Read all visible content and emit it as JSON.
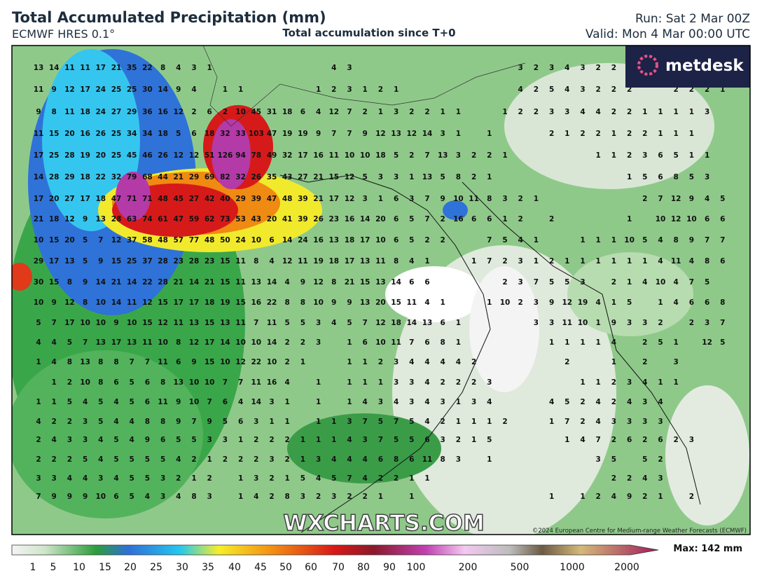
{
  "header": {
    "title": "Total Accumulated Precipitation (mm)",
    "model": "ECMWF HRES 0.1°",
    "subtitle": "Total accumulation since T+0",
    "run": "Run: Sat 2 Mar 00Z",
    "valid": "Valid: Mon 4 Mar 00:00 UTC"
  },
  "logo": "metdesk",
  "watermark": "WXCHARTS.COM",
  "credit": "©2024 European Centre for Medium-range Weather Forecasts (ECMWF)",
  "legend": {
    "max": "Max: 142 mm",
    "labels": [
      1,
      5,
      10,
      15,
      20,
      25,
      30,
      35,
      40,
      45,
      50,
      60,
      70,
      80,
      90,
      100,
      200,
      500,
      1000,
      2000
    ]
  },
  "grid_values": [
    [
      13,
      14,
      11,
      11,
      17,
      21,
      35,
      22,
      8,
      4,
      3,
      1,
      null,
      null,
      null,
      null,
      null,
      null,
      null,
      4,
      3,
      null,
      null,
      null,
      null,
      null,
      null,
      null,
      null,
      null,
      null,
      3,
      2,
      3,
      4,
      3,
      2,
      2
    ],
    [
      11,
      9,
      12,
      17,
      24,
      25,
      25,
      30,
      14,
      9,
      4,
      null,
      1,
      1,
      null,
      null,
      null,
      null,
      1,
      2,
      3,
      1,
      2,
      1,
      null,
      null,
      null,
      null,
      null,
      null,
      null,
      4,
      2,
      5,
      4,
      3,
      2,
      2,
      2,
      null,
      null,
      2,
      2,
      2,
      1
    ],
    [
      9,
      8,
      11,
      18,
      24,
      27,
      29,
      36,
      16,
      12,
      2,
      6,
      2,
      10,
      45,
      31,
      18,
      6,
      4,
      12,
      7,
      2,
      1,
      3,
      2,
      2,
      1,
      1,
      null,
      null,
      1,
      2,
      2,
      3,
      3,
      4,
      4,
      2,
      2,
      1,
      1,
      1,
      1,
      3
    ],
    [
      11,
      15,
      20,
      16,
      26,
      25,
      34,
      34,
      18,
      5,
      6,
      18,
      32,
      33,
      103,
      47,
      19,
      19,
      9,
      7,
      7,
      9,
      12,
      13,
      12,
      14,
      3,
      1,
      null,
      1,
      null,
      null,
      null,
      2,
      1,
      2,
      2,
      1,
      2,
      2,
      1,
      1,
      1
    ],
    [
      17,
      25,
      28,
      19,
      20,
      25,
      45,
      46,
      26,
      12,
      12,
      51,
      126,
      94,
      78,
      49,
      32,
      17,
      16,
      11,
      10,
      10,
      18,
      5,
      2,
      7,
      13,
      3,
      2,
      2,
      1,
      null,
      null,
      null,
      null,
      null,
      1,
      1,
      2,
      3,
      6,
      5,
      1,
      1
    ],
    [
      14,
      28,
      29,
      18,
      22,
      32,
      79,
      68,
      44,
      21,
      29,
      69,
      82,
      32,
      26,
      35,
      43,
      27,
      21,
      15,
      12,
      5,
      3,
      3,
      1,
      13,
      5,
      8,
      2,
      1,
      null,
      null,
      null,
      null,
      null,
      null,
      null,
      null,
      1,
      5,
      6,
      8,
      5,
      3
    ],
    [
      17,
      20,
      27,
      17,
      18,
      47,
      71,
      71,
      48,
      45,
      27,
      42,
      40,
      29,
      39,
      47,
      48,
      39,
      21,
      17,
      12,
      3,
      1,
      6,
      3,
      7,
      9,
      10,
      11,
      8,
      3,
      2,
      1,
      null,
      null,
      null,
      null,
      null,
      null,
      2,
      7,
      12,
      9,
      4,
      5
    ],
    [
      21,
      18,
      12,
      9,
      13,
      28,
      63,
      74,
      61,
      47,
      59,
      62,
      73,
      53,
      43,
      20,
      41,
      39,
      26,
      23,
      16,
      14,
      20,
      6,
      5,
      7,
      2,
      16,
      6,
      6,
      1,
      2,
      null,
      2,
      null,
      null,
      null,
      null,
      1,
      null,
      10,
      12,
      10,
      6,
      6
    ],
    [
      10,
      15,
      20,
      5,
      7,
      12,
      37,
      58,
      48,
      57,
      77,
      48,
      50,
      24,
      10,
      6,
      14,
      24,
      16,
      13,
      18,
      17,
      10,
      6,
      5,
      2,
      2,
      null,
      null,
      7,
      5,
      4,
      1,
      null,
      null,
      1,
      1,
      1,
      10,
      5,
      4,
      8,
      9,
      7,
      7
    ],
    [
      29,
      17,
      13,
      5,
      9,
      15,
      25,
      37,
      28,
      23,
      28,
      23,
      15,
      11,
      8,
      4,
      12,
      11,
      19,
      18,
      17,
      13,
      11,
      8,
      4,
      1,
      null,
      null,
      1,
      7,
      2,
      3,
      1,
      2,
      1,
      1,
      1,
      1,
      1,
      1,
      4,
      11,
      4,
      8,
      6
    ],
    [
      30,
      15,
      8,
      9,
      14,
      21,
      14,
      22,
      28,
      21,
      14,
      21,
      15,
      11,
      13,
      14,
      4,
      9,
      12,
      8,
      21,
      15,
      13,
      14,
      6,
      6,
      null,
      null,
      null,
      null,
      2,
      3,
      7,
      5,
      5,
      3,
      null,
      2,
      1,
      4,
      10,
      4,
      7,
      5
    ],
    [
      10,
      9,
      12,
      8,
      10,
      14,
      11,
      12,
      15,
      17,
      17,
      18,
      19,
      15,
      16,
      22,
      8,
      8,
      10,
      9,
      9,
      13,
      20,
      15,
      11,
      4,
      1,
      null,
      null,
      1,
      10,
      2,
      3,
      9,
      12,
      19,
      4,
      1,
      5,
      null,
      1,
      4,
      6,
      6,
      8
    ],
    [
      5,
      7,
      17,
      10,
      10,
      9,
      10,
      15,
      12,
      11,
      13,
      15,
      13,
      11,
      7,
      11,
      5,
      5,
      3,
      4,
      5,
      7,
      12,
      18,
      14,
      13,
      6,
      1,
      null,
      null,
      null,
      null,
      3,
      3,
      11,
      10,
      1,
      9,
      3,
      3,
      2,
      null,
      2,
      3,
      7
    ],
    [
      4,
      4,
      5,
      7,
      13,
      17,
      13,
      11,
      10,
      8,
      12,
      17,
      14,
      10,
      10,
      14,
      2,
      2,
      3,
      null,
      1,
      6,
      10,
      11,
      7,
      6,
      8,
      1,
      null,
      null,
      null,
      null,
      null,
      1,
      1,
      1,
      1,
      4,
      null,
      2,
      5,
      1,
      null,
      12,
      5
    ],
    [
      1,
      4,
      8,
      13,
      8,
      8,
      7,
      7,
      11,
      6,
      9,
      15,
      10,
      12,
      22,
      10,
      2,
      1,
      null,
      null,
      1,
      1,
      2,
      3,
      4,
      4,
      4,
      4,
      2,
      null,
      null,
      null,
      null,
      null,
      2,
      null,
      null,
      1,
      null,
      2,
      null,
      3
    ],
    [
      null,
      1,
      2,
      10,
      8,
      6,
      5,
      6,
      8,
      13,
      10,
      10,
      7,
      7,
      11,
      16,
      4,
      null,
      1,
      null,
      1,
      1,
      1,
      3,
      3,
      4,
      2,
      2,
      2,
      3,
      null,
      null,
      null,
      null,
      null,
      1,
      1,
      2,
      3,
      4,
      1,
      1
    ],
    [
      1,
      1,
      5,
      4,
      5,
      4,
      5,
      6,
      11,
      9,
      10,
      7,
      6,
      4,
      14,
      3,
      1,
      null,
      1,
      null,
      1,
      4,
      3,
      4,
      3,
      4,
      3,
      1,
      3,
      4,
      null,
      null,
      null,
      4,
      5,
      2,
      4,
      2,
      4,
      3,
      4
    ],
    [
      4,
      2,
      2,
      3,
      5,
      4,
      4,
      8,
      8,
      9,
      7,
      9,
      5,
      6,
      3,
      1,
      1,
      null,
      1,
      1,
      3,
      7,
      5,
      7,
      5,
      4,
      2,
      1,
      1,
      1,
      2,
      null,
      null,
      1,
      7,
      2,
      4,
      3,
      3,
      3,
      3
    ],
    [
      2,
      4,
      3,
      3,
      4,
      5,
      4,
      9,
      6,
      5,
      5,
      3,
      3,
      1,
      2,
      2,
      2,
      1,
      1,
      1,
      4,
      3,
      7,
      5,
      5,
      6,
      3,
      2,
      1,
      5,
      null,
      null,
      null,
      null,
      1,
      4,
      7,
      2,
      6,
      2,
      6,
      2,
      3
    ],
    [
      2,
      2,
      2,
      5,
      4,
      5,
      5,
      5,
      5,
      4,
      2,
      1,
      2,
      2,
      2,
      3,
      2,
      1,
      3,
      4,
      4,
      4,
      6,
      8,
      6,
      11,
      8,
      3,
      null,
      1,
      null,
      null,
      null,
      null,
      null,
      null,
      3,
      5,
      null,
      5,
      2
    ],
    [
      3,
      3,
      4,
      4,
      3,
      4,
      5,
      5,
      3,
      2,
      1,
      2,
      null,
      1,
      3,
      2,
      1,
      5,
      4,
      5,
      7,
      4,
      2,
      2,
      1,
      1,
      null,
      null,
      null,
      null,
      null,
      null,
      null,
      null,
      null,
      null,
      null,
      2,
      2,
      4,
      3
    ],
    [
      7,
      9,
      9,
      9,
      10,
      6,
      5,
      4,
      3,
      4,
      8,
      3,
      null,
      1,
      4,
      2,
      8,
      3,
      2,
      3,
      2,
      2,
      1,
      null,
      1,
      null,
      null,
      null,
      null,
      null,
      null,
      null,
      null,
      1,
      null,
      1,
      2,
      4,
      9,
      2,
      1,
      null,
      2
    ]
  ]
}
